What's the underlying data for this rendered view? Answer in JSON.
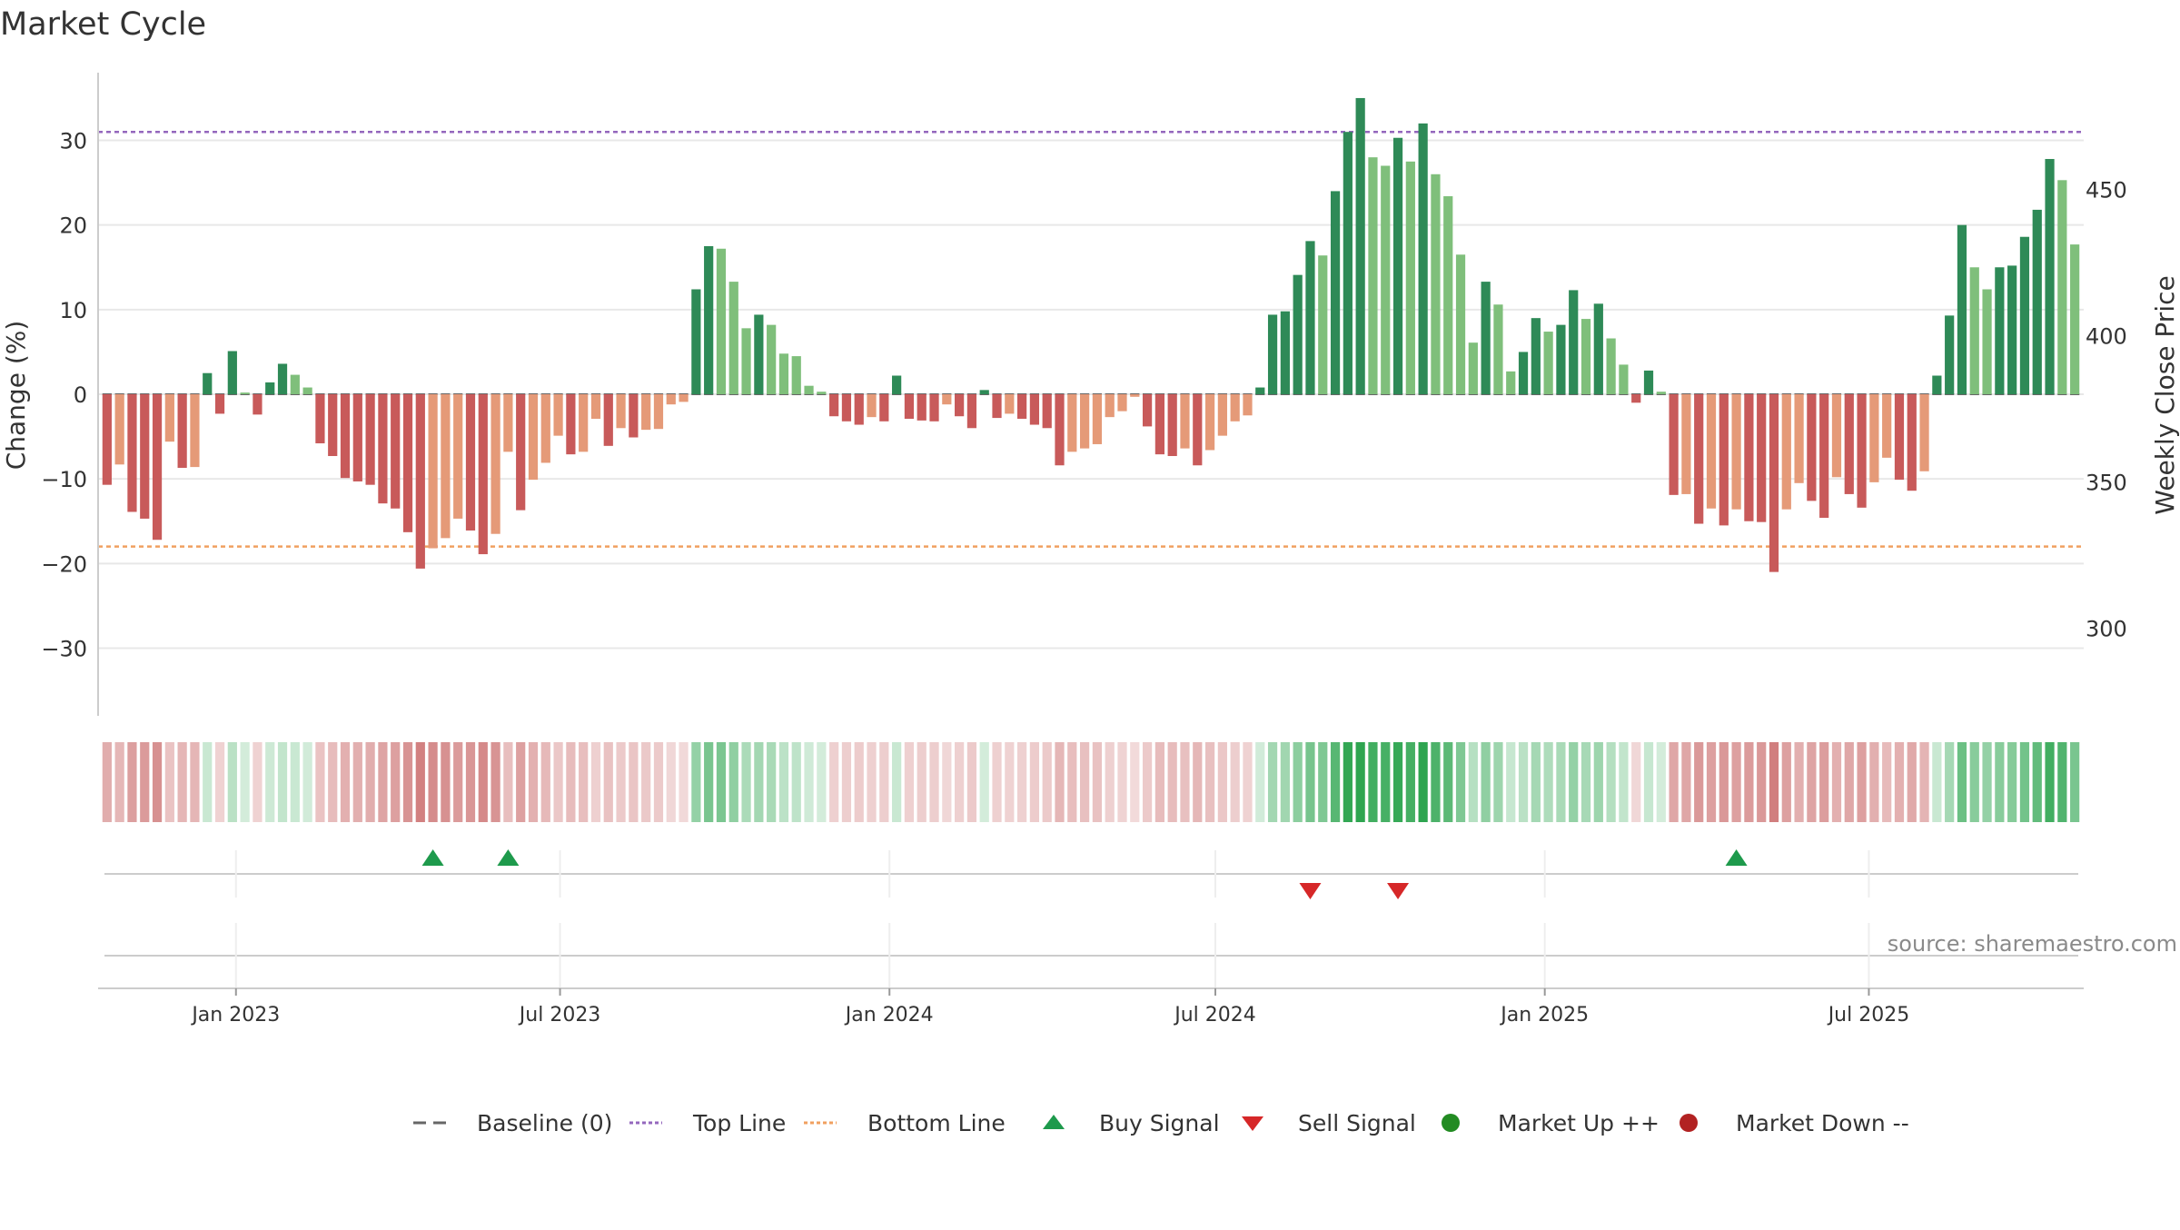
{
  "chart_data": {
    "type": "bar",
    "title": "Market Cycle",
    "ylabel": "Change (%)",
    "y2label": "Weekly Close Price",
    "ylim": [
      -38,
      38
    ],
    "y_ticks": [
      -30,
      -20,
      -10,
      0,
      10,
      20,
      30
    ],
    "y2_ticks": [
      300,
      350,
      400,
      450
    ],
    "y2lim": [
      270,
      490
    ],
    "x_ticks": [
      {
        "label": "Jan 2023",
        "date": "2023-01-01"
      },
      {
        "label": "Jul 2023",
        "date": "2023-07-01"
      },
      {
        "label": "Jan 2024",
        "date": "2024-01-01"
      },
      {
        "label": "Jul 2024",
        "date": "2024-07-01"
      },
      {
        "label": "Jan 2025",
        "date": "2025-01-01"
      },
      {
        "label": "Jul 2025",
        "date": "2025-07-01"
      }
    ],
    "x_range": [
      "2022-10-16",
      "2025-10-29"
    ],
    "week_start": "2022-10-21",
    "top_line": 31,
    "bottom_line": -18,
    "values": [
      -10.7,
      -8.3,
      -13.9,
      -14.7,
      -17.2,
      -5.6,
      -8.7,
      -8.6,
      2.5,
      -2.3,
      5.1,
      0.2,
      -2.4,
      1.4,
      3.6,
      2.3,
      0.8,
      -5.8,
      -7.3,
      -9.9,
      -10.3,
      -10.7,
      -12.9,
      -13.5,
      -16.3,
      -20.6,
      -18.2,
      -17,
      -14.7,
      -16.1,
      -18.9,
      -16.5,
      -6.8,
      -13.7,
      -10.1,
      -8.1,
      -4.9,
      -7.1,
      -6.8,
      -2.9,
      -6.1,
      -4,
      -5.1,
      -4.2,
      -4.1,
      -1.2,
      -0.9,
      12.4,
      17.5,
      17.2,
      13.3,
      7.8,
      9.4,
      8.2,
      4.8,
      4.5,
      1,
      0.3,
      -2.6,
      -3.2,
      -3.6,
      -2.7,
      -3.2,
      2.2,
      -2.9,
      -3.1,
      -3.2,
      -1.2,
      -2.6,
      -4,
      0.5,
      -2.8,
      -2.3,
      -2.9,
      -3.6,
      -4,
      -8.4,
      -6.8,
      -6.4,
      -5.9,
      -2.7,
      -2,
      -0.3,
      -3.8,
      -7.1,
      -7.3,
      -6.4,
      -8.4,
      -6.6,
      -4.9,
      -3.2,
      -2.5,
      0.8,
      9.4,
      9.8,
      14.1,
      18.1,
      16.4,
      24,
      31,
      35,
      28,
      27,
      30.3,
      27.5,
      32,
      26,
      23.4,
      16.5,
      6.1,
      13.3,
      10.6,
      2.7,
      5,
      9,
      7.4,
      8.2,
      12.3,
      8.9,
      10.7,
      6.6,
      3.5,
      -1,
      2.8,
      0.3,
      -11.9,
      -11.8,
      -15.3,
      -13.5,
      -15.5,
      -13.6,
      -15,
      -15.1,
      -21,
      -13.6,
      -10.5,
      -12.6,
      -14.6,
      -9.8,
      -11.8,
      -13.4,
      -10.4,
      -7.5,
      -10.1,
      -11.4,
      -9.1,
      2.2,
      9.3,
      20,
      15,
      12.4,
      15,
      15.2,
      18.6,
      21.8,
      27.8,
      25.3,
      17.7
    ],
    "positive_colors": [
      "#2e8a57",
      "#7fbf7b"
    ],
    "negative_colors": [
      "#c85a5a",
      "#e59a78"
    ],
    "heat_scale": {
      "negative": "#c05050",
      "positive": "#2ea550"
    },
    "buy_signals": [
      "2023-04-21",
      "2023-06-02",
      "2025-04-18"
    ],
    "sell_signals": [
      "2024-08-23",
      "2024-10-11"
    ],
    "legend": [
      {
        "label": "Baseline (0)",
        "kind": "dash",
        "color": "#666666"
      },
      {
        "label": "Top Line",
        "kind": "dotted",
        "color": "#9467bd"
      },
      {
        "label": "Bottom Line",
        "kind": "dotted",
        "color": "#f0a060"
      },
      {
        "label": "Buy Signal",
        "kind": "tri-up",
        "color": "#1e9a4c"
      },
      {
        "label": "Sell Signal",
        "kind": "tri-down",
        "color": "#d62728"
      },
      {
        "label": "Market Up ++",
        "kind": "dot",
        "color": "#228b22"
      },
      {
        "label": "Market Down --",
        "kind": "dot",
        "color": "#b22222"
      }
    ],
    "source": "source: sharemaestro.com"
  }
}
